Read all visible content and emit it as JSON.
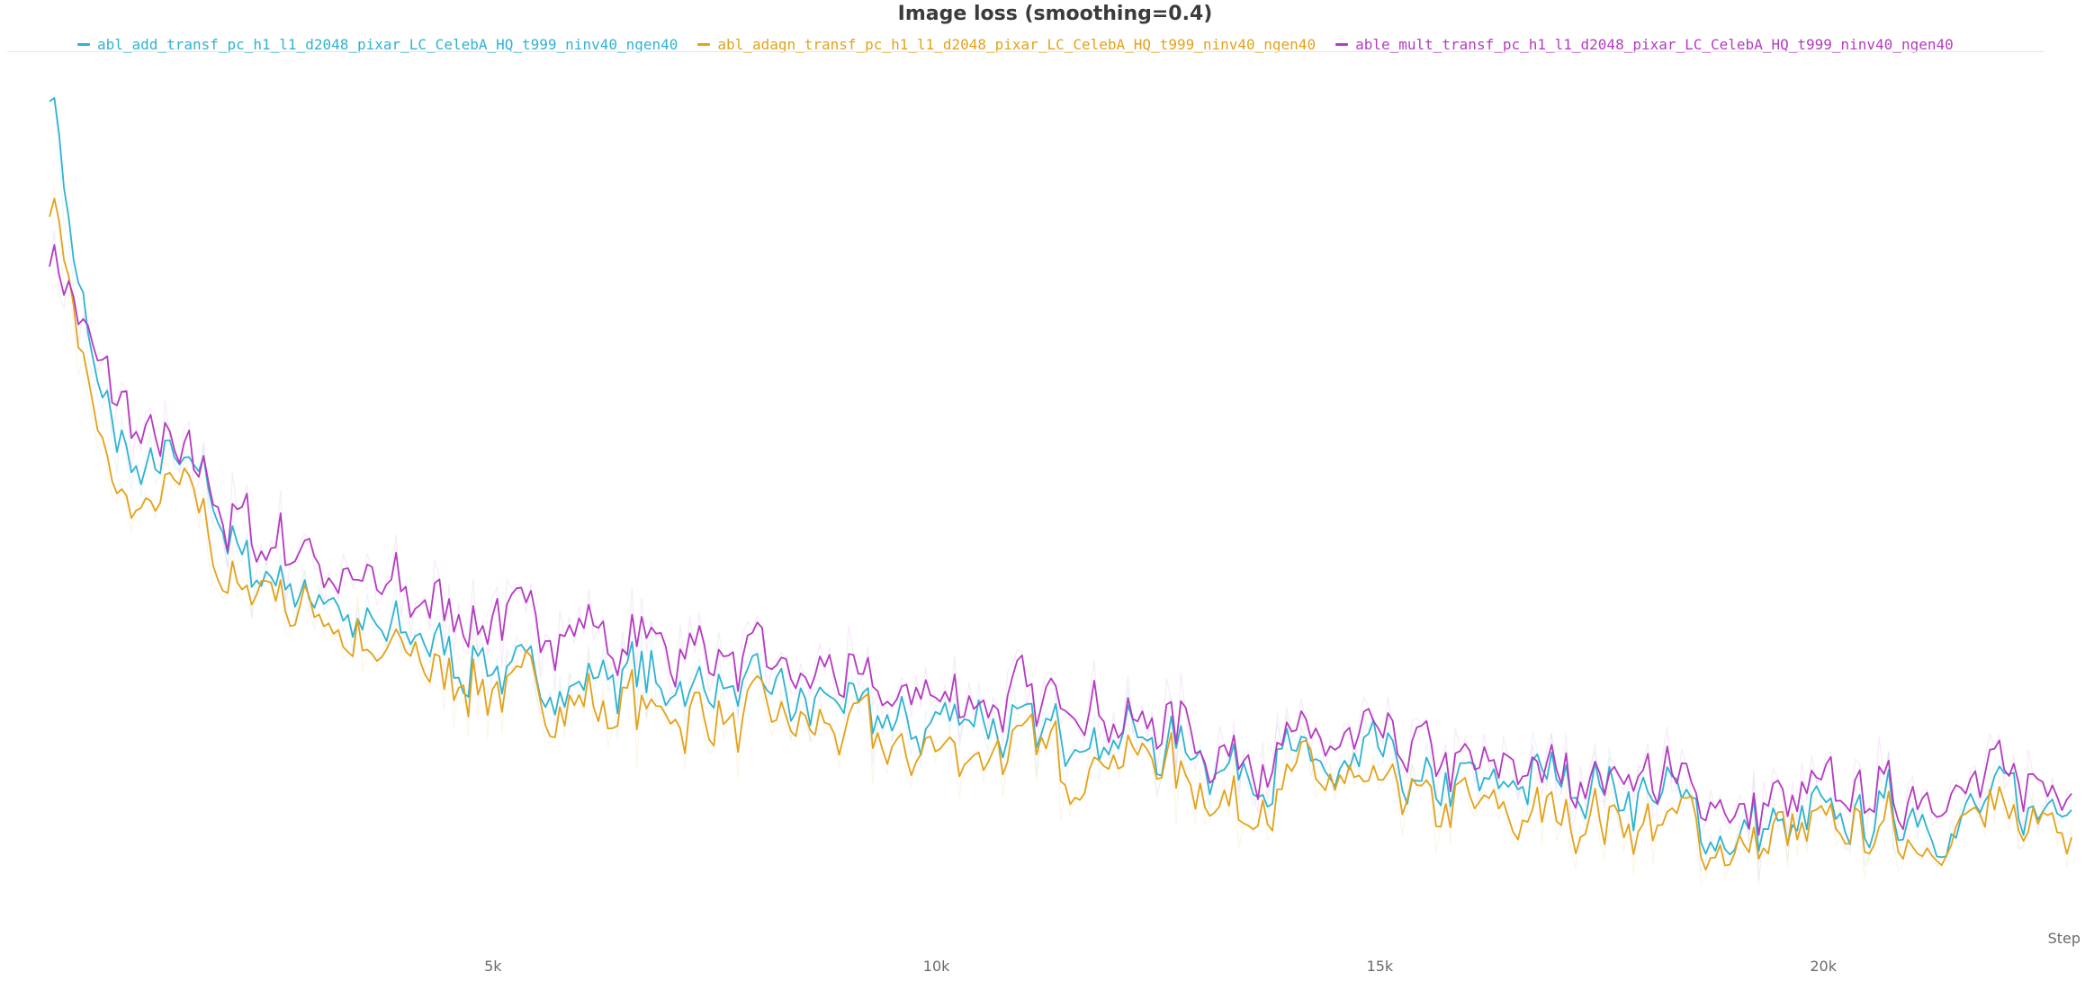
{
  "title": "Image loss (smoothing=0.4)",
  "legend": [
    {
      "label": "abl_add_transf_pc_h1_l1_d2048_pixar_LC_CelebA_HQ_t999_ninv40_ngen40",
      "color": "#2fb3d1"
    },
    {
      "label": "abl_adagn_transf_pc_h1_l1_d2048_pixar_LC_CelebA_HQ_t999_ninv40_ngen40",
      "color": "#e3a21a"
    },
    {
      "label": "able_mult_transf_pc_h1_l1_d2048_pixar_LC_CelebA_HQ_t999_ninv40_ngen40",
      "color": "#b43cc0"
    }
  ],
  "chart_data": {
    "type": "line",
    "title": "Image loss (smoothing=0.4)",
    "xlabel": "Step",
    "ylabel": "",
    "xlim": [
      0,
      22900
    ],
    "ylim": [
      0,
      1
    ],
    "x_ticks": [
      5000,
      10000,
      15000,
      20000
    ],
    "x_tick_labels": [
      "5k",
      "10k",
      "15k",
      "20k"
    ],
    "y_axis_labels_visible": false,
    "grid": false,
    "legend_position": "top",
    "smoothing": 0.4,
    "series": [
      {
        "name": "abl_add_transf_pc_h1_l1_d2048_pixar_LC_CelebA_HQ_t999_ninv40_ngen40",
        "color": "#2fb3d1",
        "x": [
          0,
          250,
          500,
          750,
          1000,
          1250,
          1500,
          1750,
          2000,
          2500,
          3000,
          3500,
          4000,
          4500,
          5000,
          5500,
          6000,
          6500,
          7000,
          7500,
          8000,
          8500,
          9000,
          9500,
          10000,
          10500,
          11000,
          11500,
          12000,
          12500,
          13000,
          13500,
          14000,
          14500,
          15000,
          15500,
          16000,
          16500,
          17000,
          17500,
          18000,
          18500,
          19000,
          19500,
          20000,
          20500,
          21000,
          21500,
          22000,
          22500,
          22800
        ],
        "y": [
          0.985,
          0.77,
          0.62,
          0.565,
          0.53,
          0.54,
          0.53,
          0.52,
          0.43,
          0.41,
          0.4,
          0.35,
          0.35,
          0.33,
          0.32,
          0.31,
          0.3,
          0.3,
          0.29,
          0.29,
          0.28,
          0.27,
          0.27,
          0.25,
          0.26,
          0.25,
          0.25,
          0.24,
          0.24,
          0.23,
          0.21,
          0.2,
          0.21,
          0.2,
          0.2,
          0.19,
          0.18,
          0.18,
          0.18,
          0.18,
          0.17,
          0.15,
          0.13,
          0.14,
          0.14,
          0.16,
          0.15,
          0.15,
          0.16,
          0.16,
          0.17
        ]
      },
      {
        "name": "abl_adagn_transf_pc_h1_l1_d2048_pixar_LC_CelebA_HQ_t999_ninv40_ngen40",
        "color": "#e3a21a",
        "x": [
          0,
          250,
          500,
          750,
          1000,
          1250,
          1500,
          1750,
          2000,
          2500,
          3000,
          3500,
          4000,
          4500,
          5000,
          5500,
          6000,
          6500,
          7000,
          7500,
          8000,
          8500,
          9000,
          9500,
          10000,
          10500,
          11000,
          11500,
          12000,
          12500,
          13000,
          13500,
          14000,
          14500,
          15000,
          15500,
          16000,
          16500,
          17000,
          17500,
          18000,
          18500,
          19000,
          19500,
          20000,
          20500,
          21000,
          21500,
          22000,
          22500,
          22800
        ],
        "y": [
          0.87,
          0.69,
          0.58,
          0.51,
          0.495,
          0.5,
          0.495,
          0.49,
          0.41,
          0.39,
          0.38,
          0.33,
          0.33,
          0.31,
          0.29,
          0.28,
          0.28,
          0.27,
          0.26,
          0.26,
          0.25,
          0.24,
          0.25,
          0.22,
          0.23,
          0.22,
          0.22,
          0.21,
          0.21,
          0.2,
          0.18,
          0.17,
          0.18,
          0.18,
          0.17,
          0.16,
          0.16,
          0.15,
          0.15,
          0.15,
          0.14,
          0.13,
          0.1,
          0.12,
          0.12,
          0.14,
          0.13,
          0.13,
          0.14,
          0.14,
          0.15
        ]
      },
      {
        "name": "able_mult_transf_pc_h1_l1_d2048_pixar_LC_CelebA_HQ_t999_ninv40_ngen40",
        "color": "#b43cc0",
        "x": [
          0,
          250,
          500,
          750,
          1000,
          1250,
          1500,
          1750,
          2000,
          2500,
          3000,
          3500,
          4000,
          4500,
          5000,
          5500,
          6000,
          6500,
          7000,
          7500,
          8000,
          8500,
          9000,
          9500,
          10000,
          10500,
          11000,
          11500,
          12000,
          12500,
          13000,
          13500,
          14000,
          14500,
          15000,
          15500,
          16000,
          16500,
          17000,
          17500,
          18000,
          18500,
          19000,
          19500,
          20000,
          20500,
          21000,
          21500,
          22000,
          22500,
          22800
        ],
        "y": [
          0.78,
          0.72,
          0.65,
          0.6,
          0.58,
          0.56,
          0.55,
          0.54,
          0.47,
          0.45,
          0.44,
          0.4,
          0.4,
          0.38,
          0.37,
          0.36,
          0.35,
          0.34,
          0.33,
          0.33,
          0.32,
          0.31,
          0.31,
          0.28,
          0.29,
          0.28,
          0.28,
          0.27,
          0.26,
          0.26,
          0.23,
          0.22,
          0.23,
          0.22,
          0.22,
          0.21,
          0.21,
          0.2,
          0.2,
          0.19,
          0.19,
          0.17,
          0.15,
          0.16,
          0.16,
          0.18,
          0.17,
          0.17,
          0.18,
          0.18,
          0.19
        ]
      }
    ]
  }
}
